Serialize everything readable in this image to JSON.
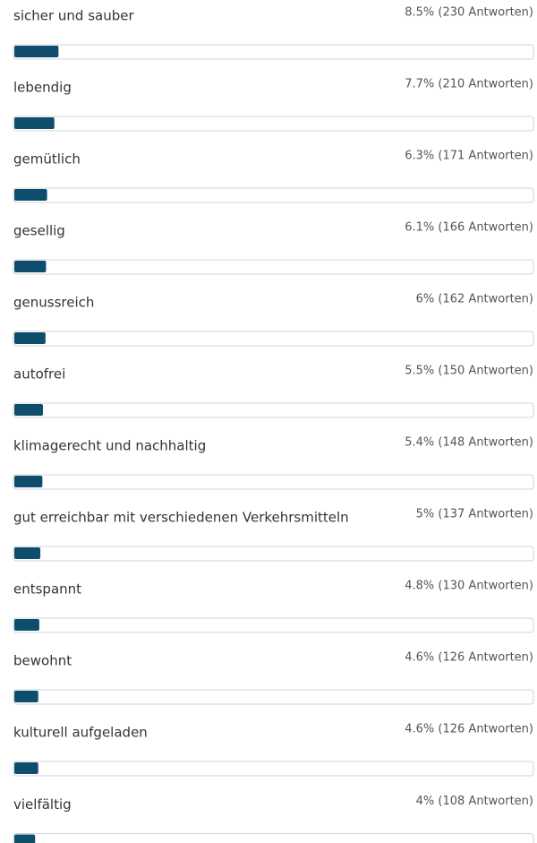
{
  "chart_data": {
    "type": "bar",
    "categories": [
      "sicher und sauber",
      "lebendig",
      "gemütlich",
      "gesellig",
      "genussreich",
      "autofrei",
      "klimagerecht und nachhaltig",
      "gut erreichbar mit verschiedenen Verkehrsmitteln",
      "entspannt",
      "bewohnt",
      "kulturell aufgeladen",
      "vielfältig"
    ],
    "values": [
      8.5,
      7.7,
      6.3,
      6.1,
      6,
      5.5,
      5.4,
      5,
      4.8,
      4.6,
      4.6,
      4
    ],
    "value_labels": [
      "8.5% (230 Antworten)",
      "7.7% (210 Antworten)",
      "6.3% (171 Antworten)",
      "6.1% (166 Antworten)",
      "6% (162 Antworten)",
      "5.5% (150 Antworten)",
      "5.4% (148 Antworten)",
      "5% (137 Antworten)",
      "4.8% (130 Antworten)",
      "4.6% (126 Antworten)",
      "4.6% (126 Antworten)",
      "4% (108 Antworten)"
    ],
    "color": "#0e4d6b",
    "xlim": [
      0,
      100
    ]
  }
}
